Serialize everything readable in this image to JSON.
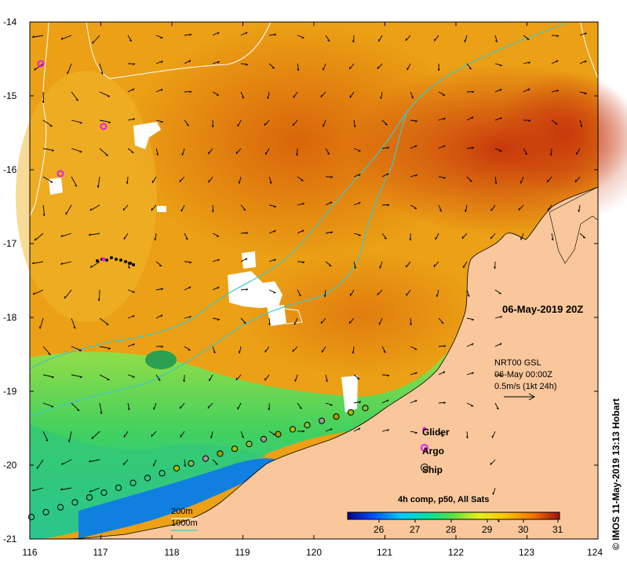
{
  "map": {
    "x_ticks": [
      "116",
      "117",
      "118",
      "119",
      "120",
      "121",
      "122",
      "123",
      "124"
    ],
    "y_ticks": [
      "-14",
      "-15",
      "-16",
      "-17",
      "-18",
      "-19",
      "-20",
      "-21"
    ]
  },
  "date_label": "06-May-2019 20Z",
  "current_info": {
    "line1": "NRT00 GSL",
    "line2": "06-May 00:00Z",
    "line3": "0.5m/s (1kt 24h)"
  },
  "legend": {
    "glider": "Glider",
    "argo": "Argo",
    "ship": "Ship"
  },
  "colorbar": {
    "title": "4h comp, p50, All Sats",
    "ticks": [
      "26",
      "27",
      "28",
      "29",
      "30",
      "31"
    ]
  },
  "depth_legend": {
    "d200": "200m",
    "d1000": "1000m"
  },
  "credit": "© IMOS 11-May-2019 13:13 Hobart",
  "colors": {
    "land": "#f9c79b",
    "argo": "#e61ee6",
    "contour_1000": "#40c8c8",
    "contour_200": "#ffffff"
  }
}
